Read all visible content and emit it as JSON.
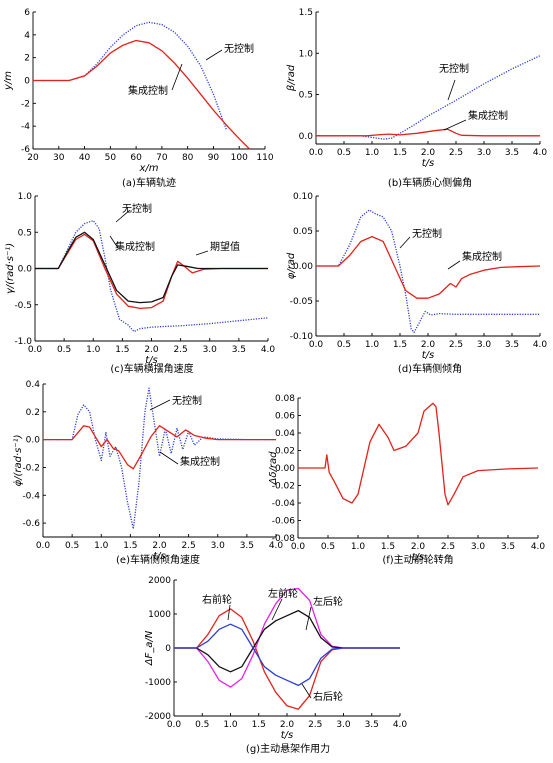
{
  "figure": {
    "colors": {
      "red": "#e3221b",
      "blue": "#2b3fd6",
      "black": "#111111",
      "magenta": "#e81fe8",
      "axis": "#000000"
    }
  },
  "chart_data": [
    {
      "id": "a",
      "type": "line",
      "caption": "(a)车辆轨迹",
      "xlabel": "x/m",
      "ylabel": "y/m",
      "xlim": [
        20,
        110
      ],
      "ylim": [
        -6,
        6
      ],
      "xticks": [
        20,
        30,
        40,
        50,
        60,
        70,
        80,
        90,
        100,
        110
      ],
      "yticks": [
        -6,
        -4,
        -2,
        0,
        2,
        4,
        6
      ],
      "annotations": [
        {
          "text": "无控制"
        },
        {
          "text": "集成控制"
        }
      ],
      "series": [
        {
          "color": "blue",
          "style": "dotted",
          "x": [
            20,
            34,
            40,
            45,
            50,
            55,
            60,
            65,
            70,
            75,
            80,
            85,
            90,
            95
          ],
          "y": [
            0,
            0,
            0.4,
            1.5,
            2.9,
            4.0,
            4.8,
            5.1,
            4.9,
            4.2,
            3.0,
            1.3,
            -1.2,
            -4.3
          ]
        },
        {
          "color": "red",
          "style": "solid",
          "x": [
            20,
            34,
            40,
            45,
            50,
            55,
            60,
            65,
            70,
            75,
            80,
            85,
            90,
            95,
            100,
            104
          ],
          "y": [
            0,
            0,
            0.4,
            1.3,
            2.4,
            3.1,
            3.5,
            3.3,
            2.6,
            1.5,
            0.2,
            -1.2,
            -2.6,
            -3.9,
            -5.1,
            -6
          ]
        }
      ]
    },
    {
      "id": "b",
      "type": "line",
      "caption": "(b)车辆质心侧偏角",
      "xlabel": "t/s",
      "ylabel": "β/rad",
      "xlim": [
        0,
        4
      ],
      "ylim": [
        -0.1,
        1.5
      ],
      "xticks": [
        0.0,
        0.5,
        1.0,
        1.5,
        2.0,
        2.5,
        3.0,
        3.5,
        4.0
      ],
      "yticks": [
        0.0,
        0.5,
        1.0,
        1.5
      ],
      "annotations": [
        {
          "text": "无控制"
        },
        {
          "text": "集成控制"
        }
      ],
      "series": [
        {
          "color": "blue",
          "style": "dotted",
          "x": [
            0,
            0.5,
            0.8,
            1.0,
            1.2,
            1.35,
            1.5,
            1.75,
            2.0,
            2.5,
            3.0,
            3.5,
            4.0
          ],
          "y": [
            0,
            0,
            0.0,
            -0.02,
            -0.04,
            -0.03,
            0.03,
            0.13,
            0.24,
            0.43,
            0.63,
            0.81,
            0.97
          ]
        },
        {
          "color": "red",
          "style": "solid",
          "x": [
            0,
            0.5,
            0.9,
            1.1,
            1.3,
            1.5,
            1.8,
            2.1,
            2.35,
            2.5,
            2.6,
            3.0,
            4.0
          ],
          "y": [
            0,
            0,
            0.0,
            0.01,
            0.02,
            0.01,
            0.03,
            0.06,
            0.08,
            0.03,
            0.005,
            0,
            0
          ]
        }
      ]
    },
    {
      "id": "c",
      "type": "line",
      "caption": "(c)车辆横摆角速度",
      "xlabel": "t/s",
      "ylabel": "γ/(rad·s⁻¹)",
      "xlim": [
        0,
        4
      ],
      "ylim": [
        -1,
        1
      ],
      "xticks": [
        0.0,
        0.5,
        1.0,
        1.5,
        2.0,
        2.5,
        3.0,
        3.5,
        4.0
      ],
      "yticks": [
        -1.0,
        -0.5,
        0.0,
        0.5,
        1.0
      ],
      "annotations": [
        {
          "text": "无控制"
        },
        {
          "text": "集成控制"
        },
        {
          "text": "期望值"
        }
      ],
      "series": [
        {
          "color": "blue",
          "style": "dotted",
          "x": [
            0,
            0.4,
            0.55,
            0.7,
            0.85,
            1.0,
            1.1,
            1.2,
            1.3,
            1.45,
            1.6,
            1.7,
            1.8,
            1.9,
            2.0,
            2.2,
            2.5,
            3.0,
            3.5,
            4.0
          ],
          "y": [
            0,
            0,
            0.25,
            0.5,
            0.62,
            0.66,
            0.55,
            0.15,
            -0.3,
            -0.7,
            -0.78,
            -0.87,
            -0.83,
            -0.82,
            -0.81,
            -0.8,
            -0.79,
            -0.76,
            -0.72,
            -0.68
          ]
        },
        {
          "color": "red",
          "style": "solid",
          "x": [
            0,
            0.4,
            0.55,
            0.7,
            0.85,
            1.0,
            1.2,
            1.4,
            1.6,
            1.8,
            2.0,
            2.2,
            2.35,
            2.45,
            2.55,
            2.7,
            2.9,
            3.2,
            4.0
          ],
          "y": [
            0,
            0,
            0.2,
            0.4,
            0.47,
            0.38,
            0.0,
            -0.35,
            -0.52,
            -0.55,
            -0.54,
            -0.45,
            -0.1,
            0.1,
            0.04,
            -0.06,
            -0.01,
            0,
            0
          ]
        },
        {
          "color": "black",
          "style": "solid",
          "x": [
            0,
            0.4,
            0.55,
            0.7,
            0.85,
            1.0,
            1.2,
            1.4,
            1.6,
            1.8,
            2.0,
            2.2,
            2.35,
            2.45,
            2.6,
            2.8,
            4.0
          ],
          "y": [
            0,
            0,
            0.22,
            0.43,
            0.5,
            0.4,
            0.05,
            -0.3,
            -0.45,
            -0.47,
            -0.46,
            -0.4,
            -0.1,
            0.05,
            0.03,
            0,
            0
          ]
        }
      ]
    },
    {
      "id": "d",
      "type": "line",
      "caption": "(d)车辆侧倾角",
      "xlabel": "t/s",
      "ylabel": "φ/rad",
      "xlim": [
        0,
        4
      ],
      "ylim": [
        -0.1,
        0.1
      ],
      "xticks": [
        0.0,
        0.5,
        1.0,
        1.5,
        2.0,
        2.5,
        3.0,
        3.5,
        4.0
      ],
      "yticks": [
        -0.1,
        -0.05,
        0.0,
        0.05,
        0.1
      ],
      "annotations": [
        {
          "text": "无控制"
        },
        {
          "text": "集成控制"
        }
      ],
      "series": [
        {
          "color": "blue",
          "style": "dotted",
          "x": [
            0,
            0.4,
            0.6,
            0.8,
            0.95,
            1.05,
            1.2,
            1.35,
            1.5,
            1.6,
            1.7,
            1.75,
            1.85,
            1.95,
            2.05,
            2.2,
            2.5,
            3.0,
            4.0
          ],
          "y": [
            0,
            0,
            0.03,
            0.07,
            0.08,
            0.075,
            0.07,
            0.05,
            0.0,
            -0.04,
            -0.09,
            -0.095,
            -0.08,
            -0.065,
            -0.07,
            -0.068,
            -0.069,
            -0.069,
            -0.069
          ]
        },
        {
          "color": "red",
          "style": "solid",
          "x": [
            0,
            0.4,
            0.6,
            0.8,
            1.0,
            1.2,
            1.4,
            1.6,
            1.8,
            2.0,
            2.2,
            2.4,
            2.5,
            2.6,
            2.75,
            3.0,
            3.3,
            3.6,
            4.0
          ],
          "y": [
            0,
            0,
            0.015,
            0.035,
            0.042,
            0.035,
            0.0,
            -0.035,
            -0.046,
            -0.046,
            -0.04,
            -0.025,
            -0.03,
            -0.018,
            -0.012,
            -0.006,
            -0.002,
            -0.001,
            0
          ]
        }
      ]
    },
    {
      "id": "e",
      "type": "line",
      "caption": "(e)车辆侧倾角速度",
      "xlabel": "t/s",
      "ylabel": "φ̇/(rad·s⁻¹)",
      "xlim": [
        0,
        4
      ],
      "ylim": [
        -0.7,
        0.4
      ],
      "xticks": [
        0.0,
        0.5,
        1.0,
        1.5,
        2.0,
        2.5,
        3.0,
        3.5,
        4.0
      ],
      "yticks": [
        -0.6,
        -0.4,
        -0.2,
        0.0,
        0.2,
        0.4
      ],
      "annotations": [
        {
          "text": "无控制"
        },
        {
          "text": "集成控制"
        }
      ],
      "series": [
        {
          "color": "blue",
          "style": "dotted",
          "x": [
            0,
            0.5,
            0.6,
            0.7,
            0.8,
            0.9,
            1.0,
            1.08,
            1.15,
            1.25,
            1.35,
            1.45,
            1.55,
            1.65,
            1.75,
            1.82,
            1.9,
            2.0,
            2.1,
            2.2,
            2.3,
            2.4,
            2.5,
            2.6,
            2.75,
            3.0,
            3.5,
            4.0
          ],
          "y": [
            0,
            0,
            0.18,
            0.25,
            0.2,
            0.0,
            -0.15,
            0.05,
            -0.12,
            -0.05,
            -0.2,
            -0.45,
            -0.64,
            -0.3,
            0.2,
            0.37,
            0.15,
            -0.12,
            0.08,
            -0.1,
            0.08,
            -0.07,
            0.06,
            -0.04,
            0.02,
            0.005,
            0,
            0
          ]
        },
        {
          "color": "red",
          "style": "solid",
          "x": [
            0,
            0.5,
            0.6,
            0.7,
            0.8,
            0.9,
            1.0,
            1.1,
            1.2,
            1.3,
            1.45,
            1.55,
            1.7,
            1.85,
            2.0,
            2.15,
            2.3,
            2.45,
            2.6,
            2.8,
            3.0,
            4.0
          ],
          "y": [
            0,
            0,
            0.05,
            0.1,
            0.09,
            0.02,
            -0.05,
            0.0,
            -0.06,
            -0.08,
            -0.18,
            -0.21,
            -0.1,
            0.02,
            0.1,
            0.06,
            0.02,
            0.07,
            0.03,
            0.01,
            0,
            0
          ]
        }
      ]
    },
    {
      "id": "f",
      "type": "line",
      "caption": "(f)主动前轮转角",
      "xlabel": "t/s",
      "ylabel": "Δδ/rad",
      "xlim": [
        0,
        4
      ],
      "ylim": [
        -0.08,
        0.08
      ],
      "xticks": [
        0.0,
        0.5,
        1.0,
        1.5,
        2.0,
        2.5,
        3.0,
        3.5,
        4.0
      ],
      "yticks": [
        -0.08,
        -0.06,
        -0.04,
        -0.02,
        0.0,
        0.02,
        0.04,
        0.06,
        0.08
      ],
      "series": [
        {
          "color": "red",
          "style": "solid",
          "x": [
            0,
            0.45,
            0.48,
            0.52,
            0.6,
            0.75,
            0.9,
            1.0,
            1.1,
            1.2,
            1.35,
            1.5,
            1.6,
            1.8,
            2.0,
            2.1,
            2.25,
            2.3,
            2.35,
            2.45,
            2.5,
            2.6,
            2.75,
            3.0,
            3.5,
            4.0
          ],
          "y": [
            0,
            0,
            0.015,
            -0.005,
            -0.015,
            -0.035,
            -0.04,
            -0.03,
            0.0,
            0.03,
            0.05,
            0.035,
            0.02,
            0.025,
            0.04,
            0.065,
            0.074,
            0.07,
            0.04,
            -0.03,
            -0.042,
            -0.03,
            -0.01,
            -0.003,
            -0.001,
            0
          ]
        }
      ]
    },
    {
      "id": "g",
      "type": "line",
      "caption": "(g)主动悬架作用力",
      "xlabel": "t/s",
      "ylabel": "ΔF_a/N",
      "xlim": [
        0,
        4
      ],
      "ylim": [
        -2000,
        2000
      ],
      "xticks": [
        0.0,
        0.5,
        1.0,
        1.5,
        2.0,
        2.5,
        3.0,
        3.5,
        4.0
      ],
      "yticks": [
        -2000,
        -1000,
        0,
        1000,
        2000
      ],
      "annotations": [
        {
          "text": "右前轮"
        },
        {
          "text": "左前轮"
        },
        {
          "text": "左后轮"
        },
        {
          "text": "右后轮"
        }
      ],
      "series": [
        {
          "name": "右前轮",
          "color": "red",
          "style": "solid",
          "x": [
            0,
            0.4,
            0.6,
            0.8,
            1.0,
            1.2,
            1.4,
            1.6,
            1.8,
            2.0,
            2.2,
            2.4,
            2.6,
            2.8,
            3.0,
            3.5,
            4.0
          ],
          "y": [
            0,
            0,
            400,
            950,
            1150,
            900,
            200,
            -700,
            -1300,
            -1700,
            -1800,
            -1400,
            -400,
            -50,
            0,
            0,
            0
          ]
        },
        {
          "name": "左前轮",
          "color": "magenta",
          "style": "solid",
          "x": [
            0,
            0.4,
            0.6,
            0.8,
            1.0,
            1.2,
            1.4,
            1.6,
            1.8,
            2.0,
            2.2,
            2.4,
            2.6,
            2.8,
            3.0,
            3.5,
            4.0
          ],
          "y": [
            0,
            0,
            -400,
            -950,
            -1150,
            -900,
            -200,
            700,
            1300,
            1700,
            1750,
            1400,
            400,
            50,
            0,
            0,
            0
          ]
        },
        {
          "name": "左后轮",
          "color": "black",
          "style": "solid",
          "x": [
            0,
            0.4,
            0.6,
            0.8,
            1.0,
            1.2,
            1.4,
            1.6,
            1.8,
            2.0,
            2.2,
            2.4,
            2.6,
            2.8,
            3.0,
            3.5,
            4.0
          ],
          "y": [
            0,
            0,
            -200,
            -550,
            -700,
            -550,
            0,
            550,
            800,
            950,
            1100,
            900,
            300,
            30,
            0,
            0,
            0
          ]
        },
        {
          "name": "右后轮",
          "color": "blue",
          "style": "solid",
          "x": [
            0,
            0.4,
            0.6,
            0.8,
            1.0,
            1.2,
            1.4,
            1.6,
            1.8,
            2.0,
            2.2,
            2.4,
            2.6,
            2.8,
            3.0,
            3.5,
            4.0
          ],
          "y": [
            0,
            0,
            200,
            550,
            700,
            550,
            0,
            -550,
            -800,
            -950,
            -1100,
            -900,
            -300,
            -30,
            0,
            0,
            0
          ]
        }
      ]
    }
  ]
}
